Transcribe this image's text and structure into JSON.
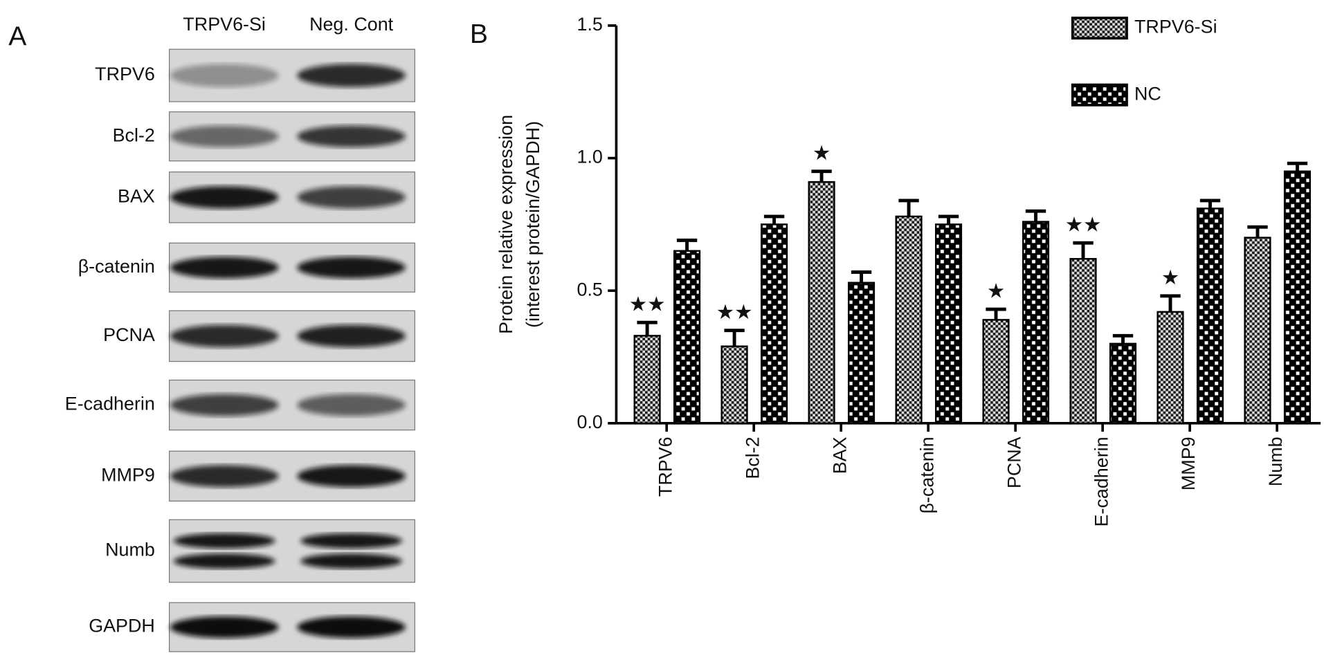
{
  "panel_a": {
    "letter": "A",
    "columns": [
      "TRPV6-Si",
      "Neg. Cont"
    ],
    "rows": [
      "TRPV6",
      "Bcl-2",
      "BAX",
      "β-catenin",
      "PCNA",
      "E-cadherin",
      "MMP9",
      "Numb",
      "GAPDH"
    ]
  },
  "chart_data": {
    "type": "bar",
    "letter": "B",
    "y_label": [
      "Protein relative expression",
      "(interest protein/GAPDH)"
    ],
    "categories": [
      "TRPV6",
      "Bcl-2",
      "BAX",
      "β-catenin",
      "PCNA",
      "E-cadherin",
      "MMP9",
      "Numb"
    ],
    "series": [
      {
        "name": "TRPV6-Si",
        "color": "#1a1a1a",
        "values": [
          0.33,
          0.29,
          0.91,
          0.78,
          0.39,
          0.62,
          0.42,
          0.7
        ],
        "errors": [
          0.05,
          0.06,
          0.04,
          0.06,
          0.04,
          0.06,
          0.06,
          0.04
        ]
      },
      {
        "name": "NC",
        "color": "#000000",
        "values": [
          0.65,
          0.75,
          0.53,
          0.75,
          0.76,
          0.3,
          0.81,
          0.95
        ],
        "errors": [
          0.04,
          0.03,
          0.04,
          0.03,
          0.04,
          0.03,
          0.03,
          0.03
        ]
      }
    ],
    "significance": [
      "★★",
      "★★",
      "★",
      null,
      "★",
      "★★",
      "★",
      null
    ],
    "ylim": [
      0,
      1.5
    ],
    "yticks": [
      {
        "value": 0,
        "label": "0.0"
      },
      0.5,
      {
        "value": 1,
        "label": "1.0"
      },
      1.5
    ],
    "legend": "top-right"
  }
}
